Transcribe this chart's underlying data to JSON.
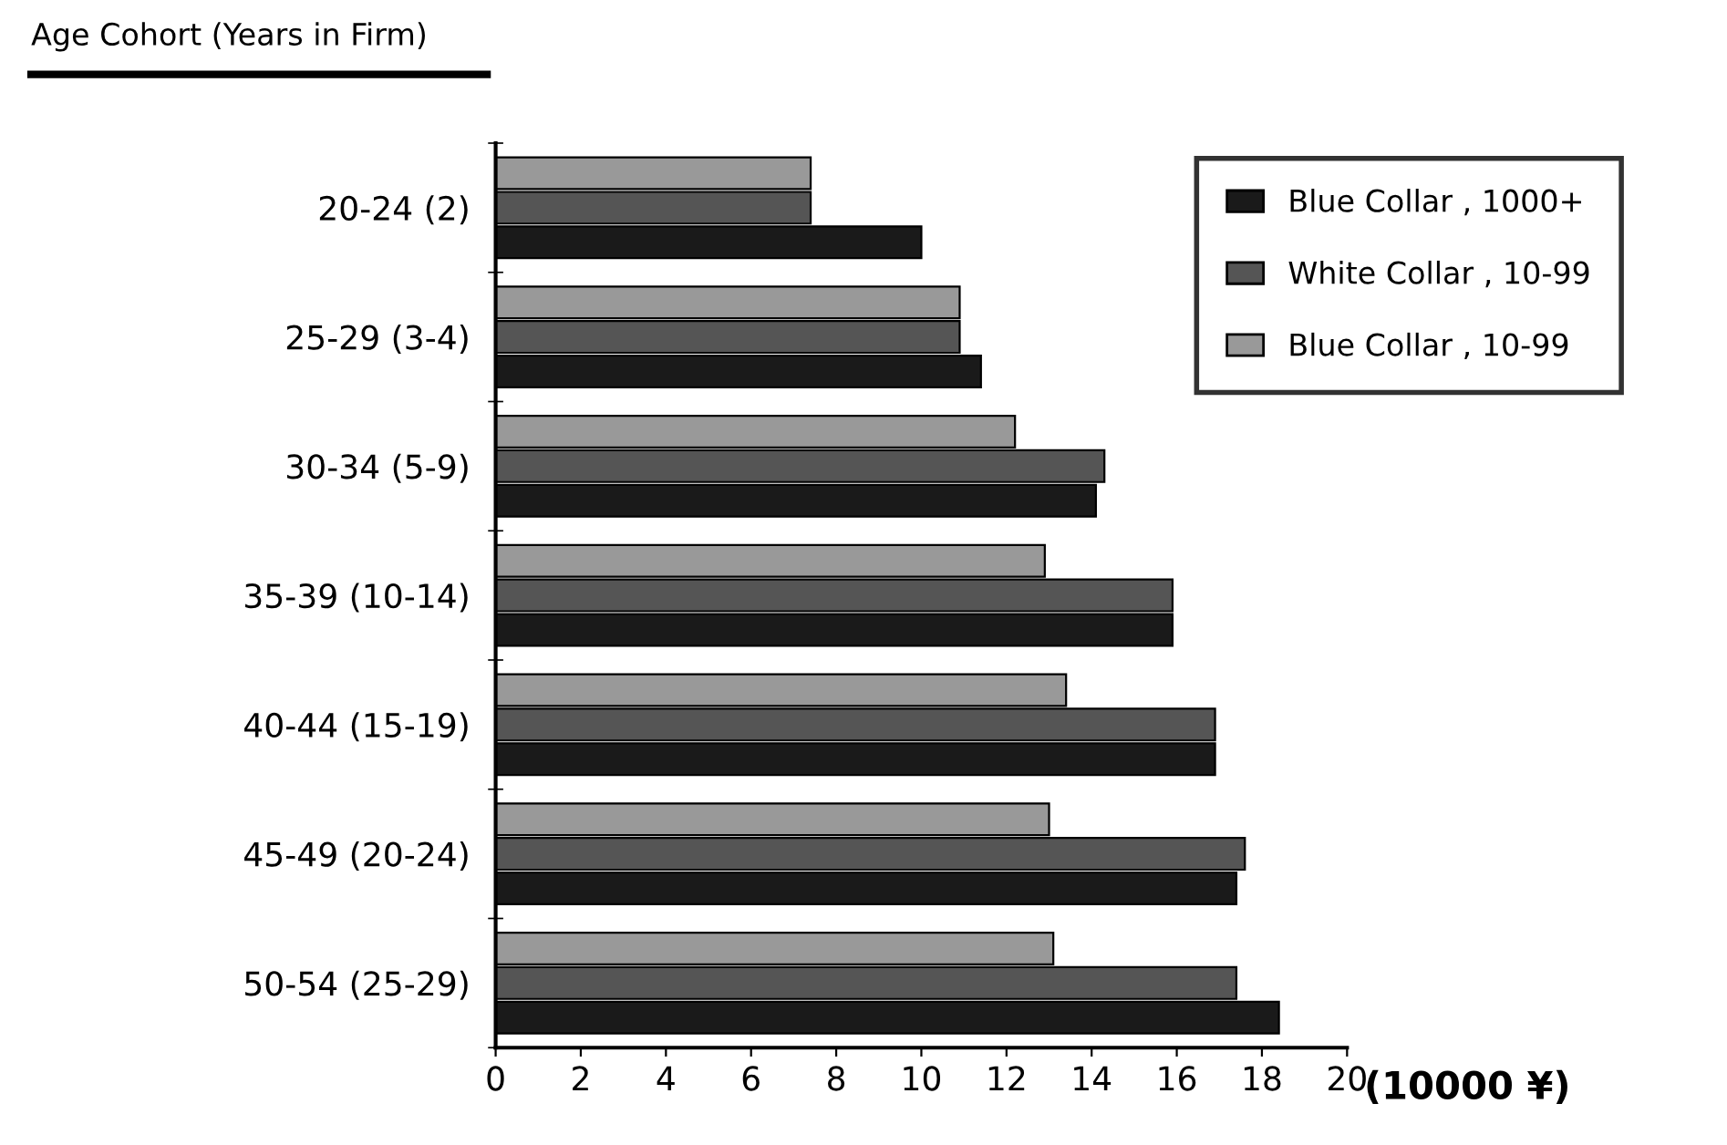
{
  "chart_data": {
    "type": "bar",
    "orientation": "horizontal",
    "ylabel": "Age Cohort (Years in Firm)",
    "xlabel": "(10000 ¥)",
    "categories": [
      "20-24 (2)",
      "25-29 (3-4)",
      "30-34 (5-9)",
      "35-39 (10-14)",
      "40-44 (15-19)",
      "45-49 (20-24)",
      "50-54 (25-29)"
    ],
    "series": [
      {
        "name": "Blue Collar , 1000+",
        "color": "#1a1a1a",
        "values": [
          10.0,
          11.4,
          14.1,
          15.9,
          16.9,
          17.4,
          18.4
        ]
      },
      {
        "name": "White Collar , 10-99",
        "color": "#555555",
        "values": [
          7.4,
          10.9,
          14.3,
          15.9,
          16.9,
          17.6,
          17.4
        ]
      },
      {
        "name": "Blue Collar , 10-99",
        "color": "#999999",
        "values": [
          7.4,
          10.9,
          12.2,
          12.9,
          13.4,
          13.0,
          13.1
        ]
      }
    ],
    "xlim": [
      0,
      20
    ],
    "xticks": [
      0,
      2,
      4,
      6,
      8,
      10,
      12,
      14,
      16,
      18,
      20
    ],
    "legend": "top right",
    "grid": false
  }
}
